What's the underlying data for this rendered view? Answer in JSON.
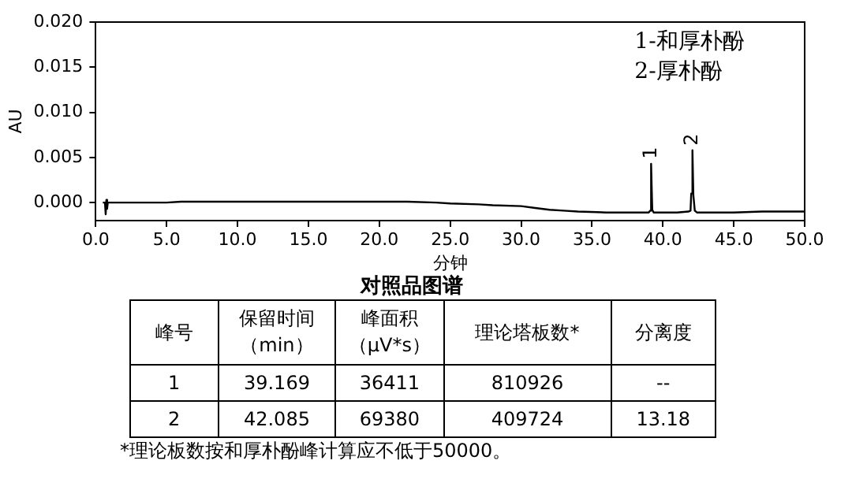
{
  "chart_data": [
    {
      "type": "line",
      "title": "对照品图谱",
      "xlabel": "分钟",
      "ylabel": "AU",
      "series": [
        {
          "color": "#000000",
          "x": [
            0.5,
            0.65,
            0.7,
            0.75,
            0.8,
            0.85,
            1.0,
            3.0,
            5.0,
            6.0,
            10.0,
            15.0,
            20.0,
            22.0,
            24.0,
            25.0,
            27.0,
            28.0,
            30.0,
            31.0,
            32.0,
            33.0,
            34.0,
            36.0,
            38.0,
            39.0,
            39.1,
            39.169,
            39.25,
            39.35,
            40.0,
            41.0,
            41.8,
            41.95,
            42.0,
            42.085,
            42.15,
            42.25,
            42.4,
            43.0,
            45.0,
            47.0,
            50.0
          ],
          "values": [
            0.0,
            0.0,
            -0.0013,
            0.0003,
            -0.0007,
            0.0,
            0.0,
            0.0,
            0.0,
            0.0001,
            0.0001,
            0.0001,
            0.0001,
            0.0001,
            0.0,
            -0.0001,
            -0.0002,
            -0.0003,
            -0.0004,
            -0.0006,
            -0.0008,
            -0.0009,
            -0.001,
            -0.0011,
            -0.0011,
            -0.0011,
            -0.0009,
            0.0043,
            -0.0008,
            -0.0011,
            -0.0011,
            -0.0011,
            -0.001,
            -0.0009,
            0.001,
            0.0058,
            0.0008,
            -0.0009,
            -0.0011,
            -0.0011,
            -0.0011,
            -0.001,
            -0.001
          ]
        }
      ],
      "xlim": [
        0,
        50
      ],
      "xticks": [
        {
          "value": 0,
          "label": "0.0"
        },
        {
          "value": 5,
          "label": "5.0"
        },
        {
          "value": 10,
          "label": "10.0"
        },
        {
          "value": 15,
          "label": "15.0"
        },
        {
          "value": 20,
          "label": "20.0"
        },
        {
          "value": 25,
          "label": "25.0"
        },
        {
          "value": 30,
          "label": "30.0"
        },
        {
          "value": 35,
          "label": "35.0"
        },
        {
          "value": 40,
          "label": "40.0"
        },
        {
          "value": 45,
          "label": "45.0"
        },
        {
          "value": 50,
          "label": "50.0"
        }
      ],
      "ylim": [
        -0.002,
        0.02
      ],
      "yticks": [
        {
          "value": 0,
          "label": "0.000"
        },
        {
          "value": 0.005,
          "label": "0.005"
        },
        {
          "value": 0.01,
          "label": "0.010"
        },
        {
          "value": 0.015,
          "label": "0.015"
        },
        {
          "value": 0.02,
          "label": "0.020"
        }
      ],
      "grid": false,
      "legend": false,
      "annotations": [
        "1-和厚朴酚",
        "2-厚朴酚",
        {
          "text": "1",
          "x": 39.169,
          "y": 0.0043
        },
        {
          "text": "2",
          "x": 42.085,
          "y": 0.0058
        }
      ]
    },
    {
      "type": "other",
      "categories": [
        "峰号",
        "保留时间（min）",
        "峰面积（μV*s）",
        "理论塔板数*",
        "分离度"
      ],
      "cells": [
        [
          "1",
          "39.169",
          "36411",
          "810926",
          "--"
        ],
        [
          "2",
          "42.085",
          "69380",
          "409724",
          "13.18"
        ]
      ],
      "annotations": [
        "*理论板数按和厚朴酚峰计算应不低于50000。"
      ]
    }
  ]
}
